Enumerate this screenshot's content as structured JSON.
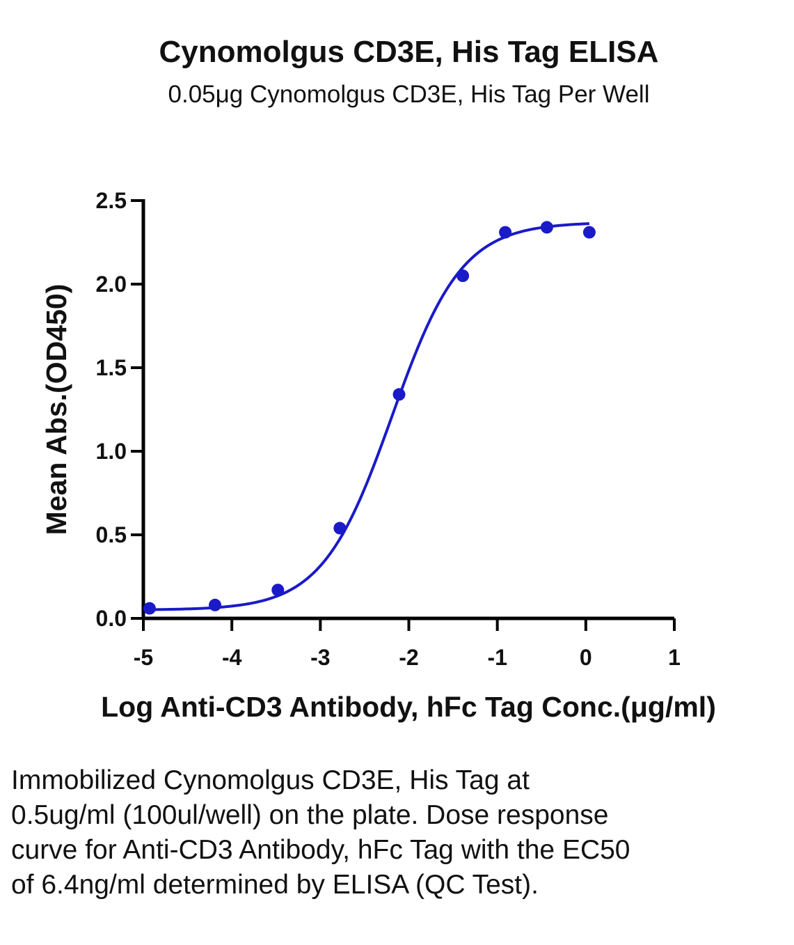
{
  "chart_data": {
    "type": "scatter",
    "title": "Cynomolgus CD3E, His Tag ELISA",
    "subtitle": "0.05μg Cynomolgus CD3E, His Tag Per Well",
    "xlabel": "Log Anti-CD3 Antibody, hFc Tag Conc.(μg/ml)",
    "ylabel": "Mean Abs.(OD450)",
    "xlim": [
      -5,
      1
    ],
    "ylim": [
      0,
      2.5
    ],
    "xticks": [
      "-5",
      "-4",
      "-3",
      "-2",
      "-1",
      "0",
      "1"
    ],
    "yticks": [
      "0.0",
      "0.5",
      "1.0",
      "1.5",
      "2.0",
      "2.5"
    ],
    "color": "#1a1ac8",
    "grid": false,
    "series": [
      {
        "x": [
          -4.93,
          -4.19,
          -3.48,
          -2.78,
          -2.11,
          -1.39,
          -0.91,
          -0.44,
          0.04
        ],
        "y": [
          0.06,
          0.08,
          0.17,
          0.54,
          1.34,
          2.05,
          2.31,
          2.34,
          2.31
        ]
      }
    ],
    "fit": {
      "model": "4PL",
      "bottom": 0.05,
      "top": 2.37,
      "log_ec50": -2.19,
      "hill": 1.1,
      "x_range": [
        -4.93,
        0.04
      ]
    }
  },
  "caption": "Immobilized Cynomolgus CD3E, His Tag at 0.5ug/ml (100ul/well) on the plate. Dose response curve for Anti-CD3 Antibody, hFc Tag with the EC50 of 6.4ng/ml determined by ELISA (QC Test)."
}
